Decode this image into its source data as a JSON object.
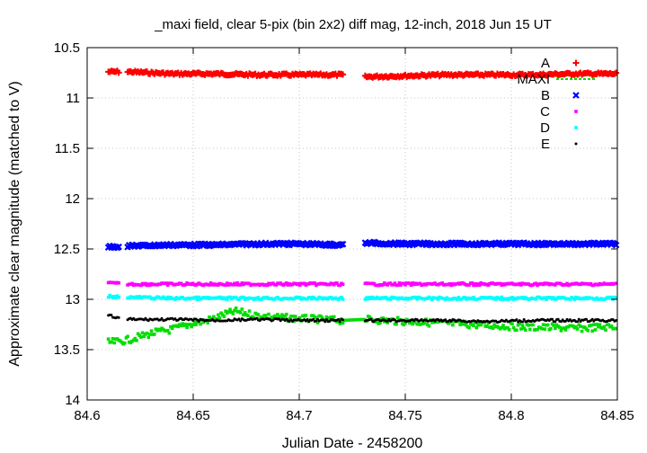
{
  "chart_data": {
    "type": "scatter",
    "title": "_maxi field, clear 5-pix (bin 2x2) diff mag, 12-inch, 2018 Jun 15 UT",
    "xlabel": "Julian Date - 2458200",
    "ylabel": "Approximate clear magnitude (matched to V)",
    "xlim": [
      84.6,
      84.85
    ],
    "ylim": [
      10.5,
      14
    ],
    "y_inverted": true,
    "grid": true,
    "legend_position": "top-right",
    "x_ticks": [
      "84.6",
      "84.65",
      "84.7",
      "84.75",
      "84.8",
      "84.85"
    ],
    "y_ticks": [
      "10.5",
      "11",
      "11.5",
      "12",
      "12.5",
      "13",
      "13.5",
      "14"
    ],
    "observing_gap": [
      84.721,
      84.731
    ],
    "series": [
      {
        "name": "A",
        "marker": "plus",
        "color": "#ff0000",
        "x": [
          84.61,
          84.62,
          84.64,
          84.66,
          84.68,
          84.7,
          84.72,
          84.731,
          84.75,
          84.77,
          84.79,
          84.81,
          84.83,
          84.85
        ],
        "y": [
          10.74,
          10.74,
          10.76,
          10.76,
          10.77,
          10.77,
          10.77,
          10.79,
          10.78,
          10.77,
          10.77,
          10.77,
          10.76,
          10.76
        ]
      },
      {
        "name": "MAXI",
        "marker": "square",
        "color": "#00dd00",
        "x": [
          84.61,
          84.615,
          84.62,
          84.625,
          84.63,
          84.635,
          84.64,
          84.645,
          84.65,
          84.655,
          84.66,
          84.665,
          84.67,
          84.675,
          84.68,
          84.685,
          84.69,
          84.7,
          84.71,
          84.72,
          84.73,
          84.74,
          84.75,
          84.76,
          84.77,
          84.78,
          84.79,
          84.8,
          84.81,
          84.82,
          84.83,
          84.84,
          84.85
        ],
        "y": [
          13.43,
          13.42,
          13.4,
          13.37,
          13.34,
          13.32,
          13.3,
          13.27,
          13.24,
          13.22,
          13.19,
          13.15,
          13.12,
          13.14,
          13.16,
          13.17,
          13.18,
          13.19,
          13.2,
          13.21,
          13.2,
          13.21,
          13.22,
          13.23,
          13.24,
          13.25,
          13.26,
          13.27,
          13.28,
          13.28,
          13.29,
          13.28,
          13.27
        ]
      },
      {
        "name": "B",
        "marker": "cross",
        "color": "#0000ff",
        "x": [
          84.61,
          84.62,
          84.64,
          84.66,
          84.68,
          84.7,
          84.72,
          84.731,
          84.75,
          84.77,
          84.79,
          84.81,
          84.83,
          84.85
        ],
        "y": [
          12.48,
          12.47,
          12.46,
          12.46,
          12.45,
          12.45,
          12.46,
          12.44,
          12.45,
          12.45,
          12.45,
          12.45,
          12.45,
          12.45
        ]
      },
      {
        "name": "C",
        "marker": "square",
        "color": "#ff00ff",
        "x": [
          84.61,
          84.62,
          84.64,
          84.66,
          84.68,
          84.7,
          84.72,
          84.731,
          84.75,
          84.77,
          84.79,
          84.81,
          84.83,
          84.85
        ],
        "y": [
          12.84,
          12.85,
          12.85,
          12.85,
          12.85,
          12.85,
          12.85,
          12.85,
          12.85,
          12.85,
          12.85,
          12.85,
          12.85,
          12.85
        ]
      },
      {
        "name": "D",
        "marker": "square",
        "color": "#00ffff",
        "x": [
          84.61,
          84.62,
          84.64,
          84.66,
          84.68,
          84.7,
          84.72,
          84.731,
          84.75,
          84.77,
          84.79,
          84.81,
          84.83,
          84.85
        ],
        "y": [
          12.97,
          12.98,
          12.99,
          12.99,
          12.99,
          12.99,
          12.99,
          12.99,
          12.99,
          12.99,
          12.99,
          12.99,
          12.99,
          12.99
        ]
      },
      {
        "name": "E",
        "marker": "dot",
        "color": "#000000",
        "x": [
          84.61,
          84.615,
          84.62,
          84.64,
          84.66,
          84.68,
          84.7,
          84.72,
          84.731,
          84.75,
          84.77,
          84.79,
          84.81,
          84.83,
          84.85
        ],
        "y": [
          13.16,
          13.19,
          13.2,
          13.2,
          13.21,
          13.2,
          13.21,
          13.21,
          13.21,
          13.21,
          13.21,
          13.22,
          13.21,
          13.21,
          13.21
        ]
      }
    ]
  }
}
